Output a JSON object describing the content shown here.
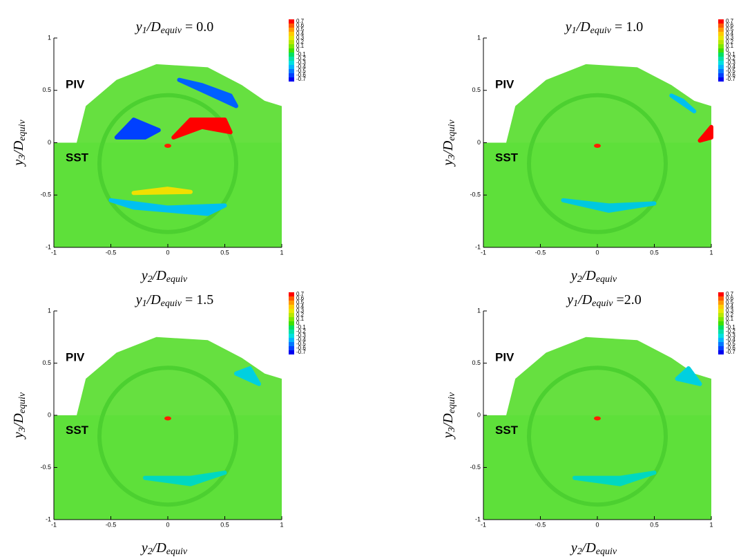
{
  "colorbar": {
    "levels": [
      0.7,
      0.6,
      0.5,
      0.4,
      0.3,
      0.2,
      0.1,
      0,
      -0.1,
      -0.2,
      -0.3,
      -0.4,
      -0.5,
      -0.6,
      -0.7
    ],
    "colors": [
      "#ff0000",
      "#ff5a00",
      "#ff9a00",
      "#ffcc00",
      "#e8e800",
      "#b8e800",
      "#7ce800",
      "#3ee000",
      "#00e060",
      "#00e0a8",
      "#00e0e0",
      "#00b4ff",
      "#0078ff",
      "#0040ff",
      "#0000f0"
    ]
  },
  "chart_data": [
    {
      "type": "contour",
      "title": [
        "y",
        "1",
        "/D",
        "equiv",
        " = 0.0"
      ],
      "xlabel": [
        "y",
        "2",
        "/D",
        "equiv"
      ],
      "ylabel": [
        "y",
        "3",
        "/D",
        "equiv"
      ],
      "annotations": [
        "PIV",
        "SST"
      ],
      "xlim": [
        -1,
        1
      ],
      "ylim": [
        -1,
        1
      ],
      "xticks": [
        -1,
        -0.5,
        0,
        0.5,
        1
      ],
      "yticks": [
        -1,
        -0.5,
        0,
        0.5,
        1
      ]
    },
    {
      "type": "contour",
      "title": [
        "y",
        "1",
        "/D",
        "equiv",
        " = 1.0"
      ],
      "xlabel": [
        "y",
        "2",
        "/D",
        "equiv"
      ],
      "ylabel": [
        "y",
        "3",
        "/D",
        "equiv"
      ],
      "annotations": [
        "PIV",
        "SST"
      ],
      "xlim": [
        -1,
        1
      ],
      "ylim": [
        -1,
        1
      ],
      "xticks": [
        -1,
        -0.5,
        0,
        0.5,
        1
      ],
      "yticks": [
        -1,
        -0.5,
        0,
        0.5,
        1
      ]
    },
    {
      "type": "contour",
      "title": [
        "y",
        "1",
        "/D",
        "equiv",
        " = 1.5"
      ],
      "xlabel": [
        "y",
        "2",
        "/D",
        "equiv"
      ],
      "ylabel": [
        "y",
        "3",
        "/D",
        "equiv"
      ],
      "annotations": [
        "PIV",
        "SST"
      ],
      "xlim": [
        -1,
        1
      ],
      "ylim": [
        -1,
        1
      ],
      "xticks": [
        -1,
        -0.5,
        0,
        0.5,
        1
      ],
      "yticks": [
        -1,
        -0.5,
        0,
        0.5,
        1
      ]
    },
    {
      "type": "contour",
      "title": [
        "y",
        "1",
        "/D",
        "equiv",
        " =2.0"
      ],
      "xlabel": [
        "y",
        "2",
        "/D",
        "equiv"
      ],
      "ylabel": [
        "y",
        "3",
        "/D",
        "equiv"
      ],
      "annotations": [
        "PIV",
        "SST"
      ],
      "xlim": [
        -1,
        1
      ],
      "ylim": [
        -1,
        1
      ],
      "xticks": [
        -1,
        -0.5,
        0,
        0.5,
        1
      ],
      "yticks": [
        -1,
        -0.5,
        0,
        0.5,
        1
      ]
    }
  ]
}
